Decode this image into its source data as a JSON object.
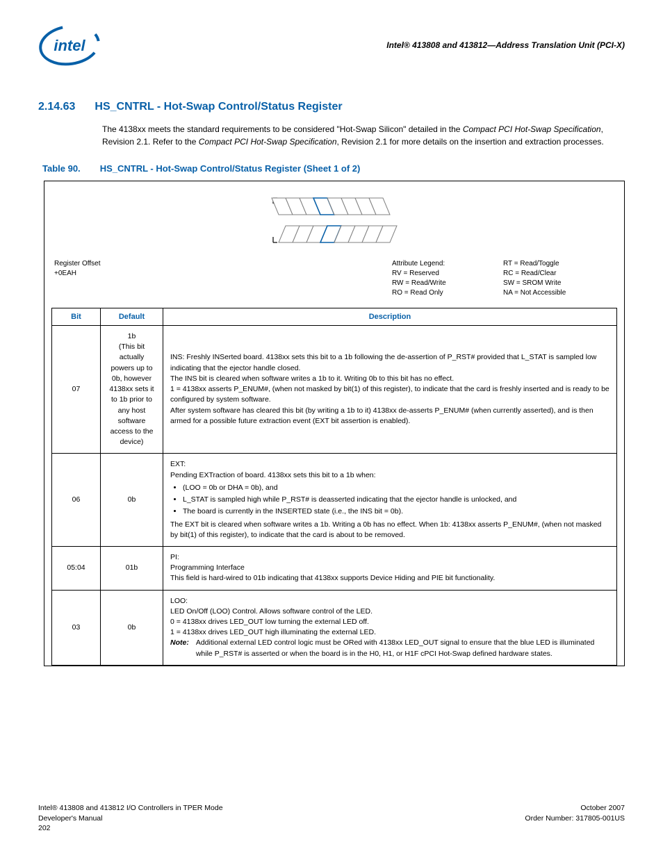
{
  "colors": {
    "accent": "#0860a8",
    "text": "#000000",
    "border": "#000000",
    "background": "#ffffff"
  },
  "fonts": {
    "body_family": "Verdana, Arial, sans-serif",
    "body_size_pt": 9,
    "heading_size_pt": 12,
    "table_heading_size_pt": 10,
    "footer_size_pt": 8
  },
  "header": {
    "doc_title": "Intel® 413808 and 413812—Address Translation Unit (PCI-X)",
    "logo_alt": "intel"
  },
  "section": {
    "number": "2.14.63",
    "title": "HS_CNTRL - Hot-Swap Control/Status Register",
    "body_pre": "The 4138xx meets the standard requirements to be considered \"Hot-Swap Silicon\" detailed in the ",
    "body_em1": "Compact PCI Hot-Swap Specification",
    "body_mid": ", Revision 2.1. Refer to the ",
    "body_em2": "Compact PCI Hot-Swap Specification",
    "body_post": ", Revision 2.1 for more details on the insertion and extraction processes."
  },
  "table_caption": {
    "number": "Table 90.",
    "title": "HS_CNTRL - Hot-Swap Control/Status Register (Sheet 1 of 2)"
  },
  "diagram": {
    "type": "register-bitfield",
    "bits": 8,
    "highlight_bit_index": 3,
    "highlight_color": "#0860a8",
    "stroke": "#808080",
    "tick_stroke": "#000000"
  },
  "legend": {
    "offset_label": "Register Offset",
    "offset_value": "+0EAH",
    "attr_heading": "Attribute Legend:",
    "mid": [
      "RV = Reserved",
      "RW = Read/Write",
      "RO = Read Only"
    ],
    "right": [
      "RT = Read/Toggle",
      "RC = Read/Clear",
      "SW = SROM Write",
      "NA = Not Accessible"
    ]
  },
  "columns": [
    "Bit",
    "Default",
    "Description"
  ],
  "rows": [
    {
      "bit": "07",
      "default": "1b\n(This bit actually powers up to 0b, however 4138xx sets it to 1b prior to any host software access to the device)",
      "desc_html": "INS: Freshly INSerted board. 4138xx sets this bit to a 1b following the de-assertion of P_RST# provided that L_STAT is sampled low indicating that the ejector handle closed.<br>The INS bit is cleared when software writes a 1b to it. Writing 0b to this bit has no effect.<br>1 = 4138xx asserts P_ENUM#, (when not masked by bit(1) of this register), to indicate that the card is freshly inserted and is ready to be configured by system software.<br>After system software has cleared this bit (by writing a 1b to it) 4138xx de-asserts P_ENUM# (when currently asserted), and is then armed for a possible future extraction event (EXT bit assertion is enabled)."
    },
    {
      "bit": "06",
      "default": "0b",
      "desc_html": "EXT:<br>Pending EXTraction of board. 4138xx sets this bit to a 1b when:<ul><li>(LOO = 0b or DHA = 0b), and</li><li>L_STAT is sampled high while P_RST# is deasserted indicating that the ejector handle is unlocked, and</li><li>The board is currently in the INSERTED state (i.e., the INS bit = 0b).</li></ul>The EXT bit is cleared when software writes a 1b. Writing a 0b has no effect. When 1b: 4138xx asserts P_ENUM#, (when not masked by bit(1) of this register), to indicate that the card is about to be removed."
    },
    {
      "bit": "05:04",
      "default": "01b",
      "desc_html": "PI:<br>Programming Interface<br>This field is hard-wired to 01b indicating that 4138xx supports Device Hiding and PIE bit functionality."
    },
    {
      "bit": "03",
      "default": "0b",
      "desc_html": "LOO:<br>LED On/Off (LOO) Control. Allows software control of the LED.<br>0 = 4138xx drives LED_OUT low turning the external LED off.<br>1 = 4138xx drives LED_OUT high illuminating the external LED.<br><span class=\"note-line\"><span class=\"note-label\">Note:</span><span>Additional external LED control logic must be ORed with 4138xx LED_OUT signal to ensure that the blue LED is illuminated while P_RST# is asserted or when the board is in the H0, H1, or H1F cPCI Hot-Swap defined hardware states.</span></span>"
    }
  ],
  "footer": {
    "left1": "Intel® 413808 and 413812 I/O Controllers in TPER Mode",
    "left2": "Developer's Manual",
    "left3": "202",
    "right1": "October 2007",
    "right2": "Order Number: 317805-001US"
  }
}
